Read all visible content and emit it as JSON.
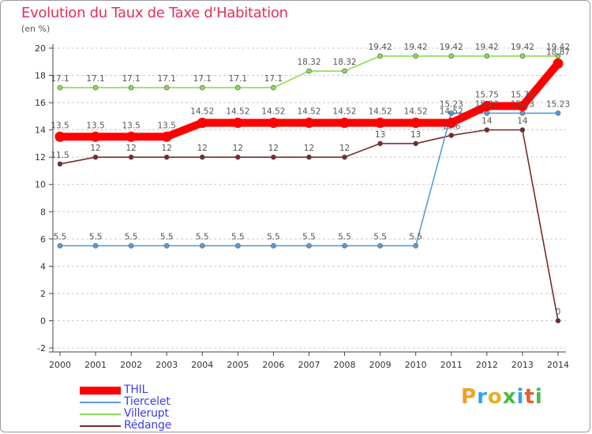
{
  "title": "Evolution du Taux de Taxe d'Habitation",
  "subtitle": "(en %)",
  "logo": "Proxiti",
  "chart_data": {
    "type": "line",
    "title": "Evolution du Taux de Taxe d'Habitation",
    "ylabel": "(en %)",
    "xlabel": "",
    "ylim": [
      -2,
      20
    ],
    "y_ticks": [
      -2,
      0,
      2,
      4,
      6,
      8,
      10,
      12,
      14,
      16,
      18,
      20
    ],
    "categories": [
      "2000",
      "2001",
      "2002",
      "2003",
      "2004",
      "2005",
      "2006",
      "2007",
      "2008",
      "2009",
      "2010",
      "2011",
      "2012",
      "2013",
      "2014"
    ],
    "grid": "horizontal-dashed",
    "legend_position": "bottom-left",
    "series": [
      {
        "name": "THIL",
        "color": "#ff0000",
        "values": [
          13.5,
          13.5,
          13.5,
          13.5,
          14.52,
          14.52,
          14.52,
          14.52,
          14.52,
          14.52,
          14.52,
          14.52,
          15.75,
          15.75,
          18.87
        ],
        "labels": [
          "13.5",
          "13.5",
          "13.5",
          "13.5",
          "14.52",
          "14.52",
          "14.52",
          "14.52",
          "14.52",
          "14.52",
          "14.52",
          "14.52",
          "15.75",
          "15.75",
          "18.87"
        ]
      },
      {
        "name": "Tiercelet",
        "color": "#5b9bd5",
        "values": [
          5.5,
          5.5,
          5.5,
          5.5,
          5.5,
          5.5,
          5.5,
          5.5,
          5.5,
          5.5,
          5.5,
          15.23,
          15.23,
          15.23,
          15.23
        ],
        "labels": [
          "5.5",
          "5.5",
          "5.5",
          "5.5",
          "5.5",
          "5.5",
          "5.5",
          "5.5",
          "5.5",
          "5.5",
          "5.5",
          "15.23",
          "15.23",
          "15.23",
          "15.23"
        ]
      },
      {
        "name": "Villerupt",
        "color": "#88dd55",
        "values": [
          17.1,
          17.1,
          17.1,
          17.1,
          17.1,
          17.1,
          17.1,
          18.32,
          18.32,
          19.42,
          19.42,
          19.42,
          19.42,
          19.42,
          19.42
        ],
        "labels": [
          "17.1",
          "17.1",
          "17.1",
          "17.1",
          "17.1",
          "17.1",
          "17.1",
          "18.32",
          "18.32",
          "19.42",
          "19.42",
          "19.42",
          "19.42",
          "19.42",
          "19.42"
        ]
      },
      {
        "name": "Rédange",
        "color": "#7a2a2a",
        "values": [
          11.5,
          12,
          12,
          12,
          12,
          12,
          12,
          12,
          12,
          13,
          13,
          13.6,
          14,
          14,
          0
        ],
        "labels": [
          "11.5",
          "12",
          "12",
          "12",
          "12",
          "12",
          "12",
          "12",
          "12",
          "13",
          "13",
          "13.6",
          "14",
          "14",
          "0"
        ]
      }
    ]
  }
}
